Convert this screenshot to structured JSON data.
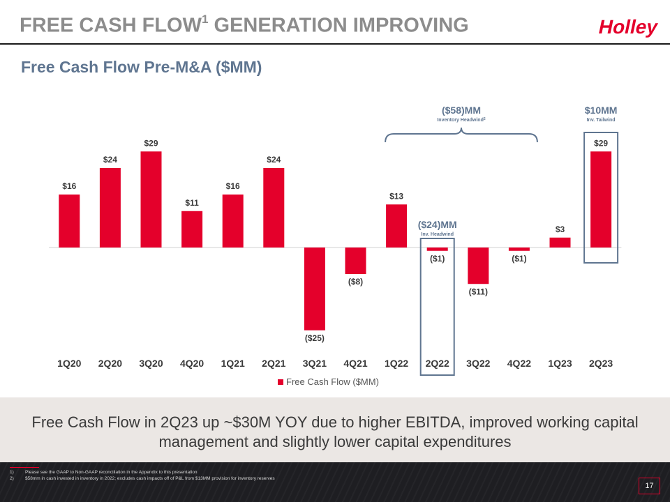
{
  "slide": {
    "title": "FREE CASH FLOW",
    "title_sup": "1",
    "title_rest": " GENERATION IMPROVING",
    "logo_text": "Holley",
    "subtitle": "Free Cash Flow Pre-M&A ($MM)",
    "summary": "Free Cash Flow in 2Q23 up ~$30M YOY due to higher EBITDA, improved working capital management and slightly lower capital expenditures",
    "footnotes": [
      {
        "num": "1)",
        "text": "Please see the GAAP to Non-GAAP reconciliation in the Appendix to this presentation"
      },
      {
        "num": "2)",
        "text": "$58mm in cash invested in inventory in 2022; excludes cash impacts off of P&L from $13MM provision for inventory reserves"
      }
    ],
    "page_number": "17"
  },
  "colors": {
    "bar": "#e4002b",
    "annotation": "#5f7590",
    "text_dark": "#3a3a3a"
  },
  "chart_data": {
    "type": "bar",
    "categories": [
      "1Q20",
      "2Q20",
      "3Q20",
      "4Q20",
      "1Q21",
      "2Q21",
      "3Q21",
      "4Q21",
      "1Q22",
      "2Q22",
      "3Q22",
      "4Q22",
      "1Q23",
      "2Q23"
    ],
    "series": [
      {
        "name": "Free Cash Flow ($MM)",
        "values": [
          16,
          24,
          29,
          11,
          16,
          24,
          -25,
          -8,
          13,
          -1,
          -11,
          -1,
          3,
          29
        ]
      }
    ],
    "data_labels": [
      "$16",
      "$24",
      "$29",
      "$11",
      "$16",
      "$24",
      "($25)",
      "($8)",
      "$13",
      "($1)",
      "($11)",
      "($1)",
      "$3",
      "$29"
    ],
    "legend": {
      "label": "Free Cash Flow ($MM)",
      "position": "bottom"
    },
    "ylim": [
      -25,
      29
    ],
    "grid": false,
    "annotations": [
      {
        "main": "($58)MM",
        "sub": "Inventory Headwind",
        "sub_sup": "2",
        "span": [
          "1Q22",
          "4Q22"
        ],
        "style": "brace"
      },
      {
        "main": "($24)MM",
        "sub": "Inv. Headwind",
        "target": "2Q22",
        "style": "box"
      },
      {
        "main": "$10MM",
        "sub": "Inv. Tailwind",
        "target": "2Q23",
        "style": "box"
      }
    ]
  }
}
